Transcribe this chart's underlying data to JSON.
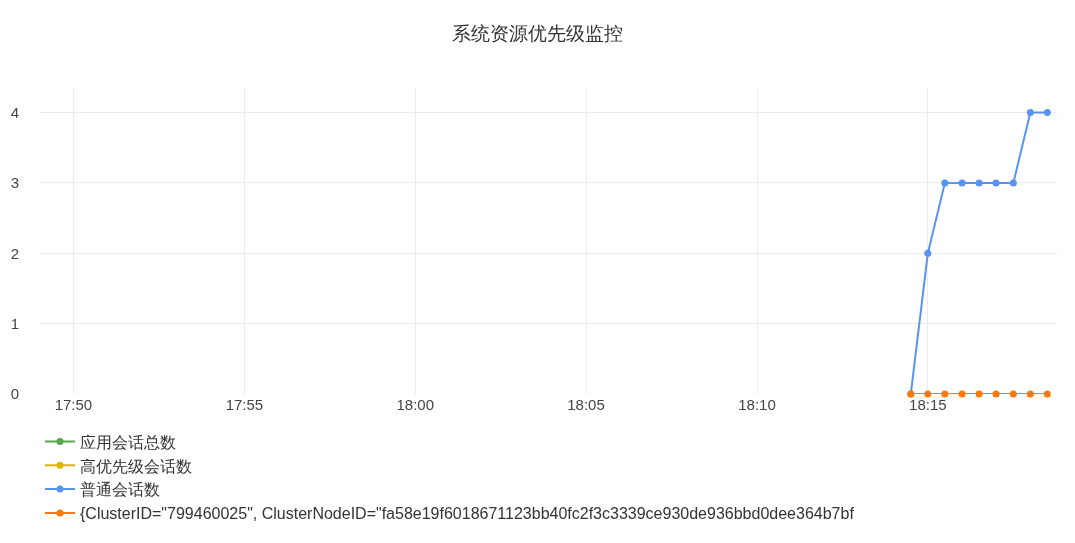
{
  "chart_data": {
    "type": "line",
    "title": "系统资源优先级监控",
    "x": [
      18.2417,
      18.25,
      18.2583,
      18.2667,
      18.275,
      18.2833,
      18.2917,
      18.3,
      18.3083
    ],
    "series": [
      {
        "name": "应用会话总数",
        "color": "#56a64b",
        "values": [
          null,
          null,
          null,
          null,
          null,
          null,
          null,
          null,
          null
        ]
      },
      {
        "name": "高优先级会话数",
        "color": "#e0b400",
        "values": [
          null,
          null,
          null,
          null,
          null,
          null,
          null,
          null,
          null
        ]
      },
      {
        "name": "普通会话数",
        "color": "#5794f2",
        "values": [
          0,
          2,
          3,
          3,
          3,
          3,
          3,
          4,
          4
        ]
      },
      {
        "name": "{ClusterID=\"799460025\", ClusterNodeID=\"fa58e19f6018671123bb40fc2f3c3339ce930de936bbd0dee364b7bf",
        "color": "#ff780a",
        "values": [
          0,
          0,
          0,
          0,
          0,
          0,
          0,
          0,
          0
        ]
      }
    ],
    "xlim": [
      17.817,
      18.313
    ],
    "xticks": [
      {
        "value": 17.8333,
        "label": "17:50"
      },
      {
        "value": 17.9167,
        "label": "17:55"
      },
      {
        "value": 18.0,
        "label": "18:00"
      },
      {
        "value": 18.0833,
        "label": "18:05"
      },
      {
        "value": 18.1667,
        "label": "18:10"
      },
      {
        "value": 18.25,
        "label": "18:15"
      }
    ],
    "ylim": [
      0,
      4.35
    ],
    "yticks": [
      0,
      1,
      2,
      3,
      4
    ],
    "grid": true,
    "legend": "bottom left",
    "marker": "circle",
    "line_style": "solid"
  }
}
